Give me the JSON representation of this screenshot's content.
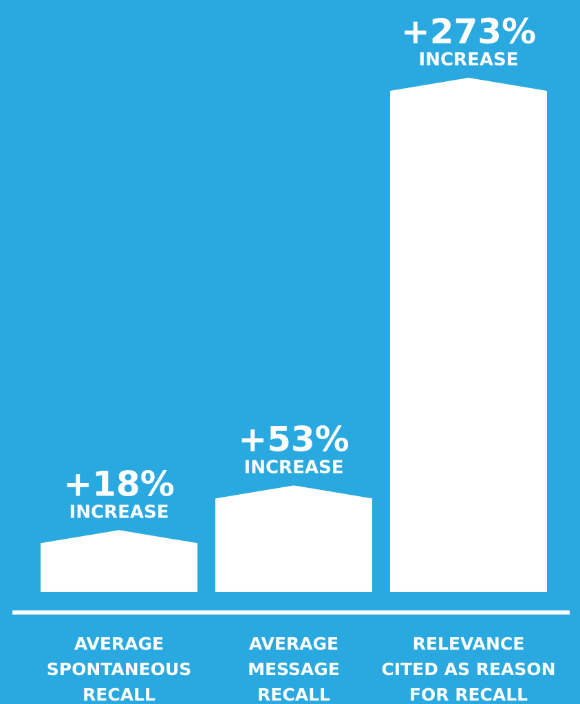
{
  "chart_data": {
    "type": "bar",
    "categories": [
      [
        "AVERAGE",
        "SPONTANEOUS",
        "RECALL"
      ],
      [
        "AVERAGE",
        "MESSAGE",
        "RECALL"
      ],
      [
        "RELEVANCE",
        "CITED AS REASON",
        "FOR RECALL"
      ]
    ],
    "values": [
      18,
      53,
      273
    ],
    "value_labels": [
      "+18%",
      "+53%",
      "+273%"
    ],
    "value_sublabel": "INCREASE",
    "title": "",
    "xlabel": "",
    "ylabel": "",
    "grid": false,
    "legend": "none"
  },
  "colors": {
    "background": "#29a9e0",
    "bar": "#ffffff",
    "text": "#ffffff"
  }
}
